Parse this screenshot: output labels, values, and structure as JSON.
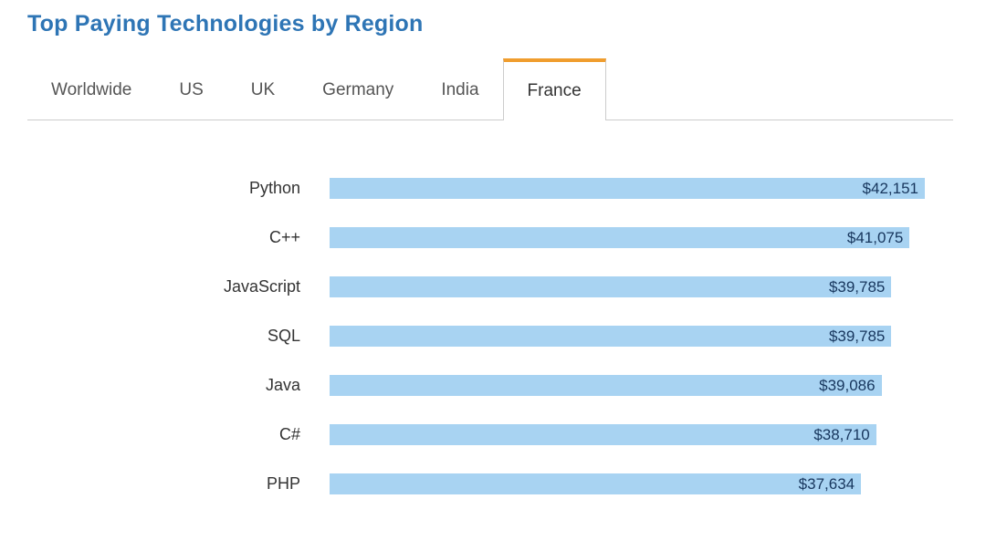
{
  "page": {
    "title": "Top Paying Technologies by Region"
  },
  "tabs": [
    {
      "label": "Worldwide",
      "active": false
    },
    {
      "label": "US",
      "active": false
    },
    {
      "label": "UK",
      "active": false
    },
    {
      "label": "Germany",
      "active": false
    },
    {
      "label": "India",
      "active": false
    },
    {
      "label": "France",
      "active": true
    }
  ],
  "chart_data": {
    "type": "bar",
    "orientation": "horizontal",
    "title": "Top Paying Technologies by Region",
    "subtitle_tab": "France",
    "categories": [
      "Python",
      "C++",
      "JavaScript",
      "SQL",
      "Java",
      "C#",
      "PHP"
    ],
    "values": [
      42151,
      41075,
      39785,
      39785,
      39086,
      38710,
      37634
    ],
    "value_labels": [
      "$42,151",
      "$41,075",
      "$39,785",
      "$39,785",
      "$39,086",
      "$38,710",
      "$37,634"
    ],
    "xlabel": "",
    "ylabel": "",
    "xlim": [
      0,
      42151
    ],
    "grid": false,
    "legend": "none",
    "bar_color": "#a8d3f2",
    "value_text_color": "#17365d"
  },
  "colors": {
    "title": "#2e75b5",
    "tab_active_accent": "#f09d2e",
    "tab_border": "#cccccc",
    "bar": "#a8d3f2",
    "value_text": "#17365d"
  }
}
